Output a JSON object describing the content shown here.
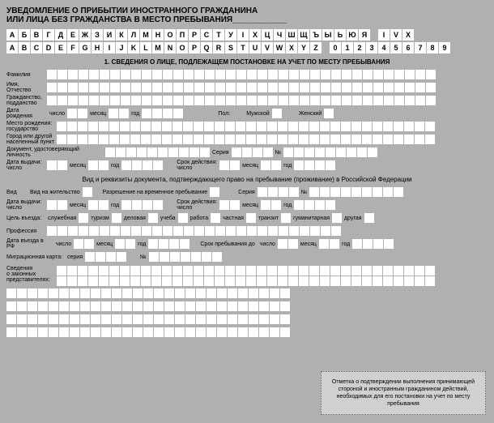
{
  "title_line1": "УВЕДОМЛЕНИЕ О ПРИБЫТИИ ИНОСТРАННОГО ГРАЖДАНИНА",
  "title_line2": "ИЛИ ЛИЦА БЕЗ ГРАЖДАНСТВА В МЕСТО ПРЕБЫВАНИЯ____________",
  "kb_ru": [
    "А",
    "Б",
    "В",
    "Г",
    "Д",
    "Е",
    "Ж",
    "З",
    "И",
    "К",
    "Л",
    "М",
    "Н",
    "О",
    "П",
    "Р",
    "С",
    "Т",
    "У",
    "І",
    "Х",
    "Ц",
    "Ч",
    "Ш",
    "Щ",
    "Ъ",
    "Ы",
    "Ь",
    "Ю",
    "Я"
  ],
  "kb_ru2": [
    "I",
    "V",
    "X"
  ],
  "kb_en": [
    "A",
    "B",
    "C",
    "D",
    "E",
    "F",
    "G",
    "H",
    "I",
    "J",
    "K",
    "L",
    "M",
    "N",
    "O",
    "P",
    "Q",
    "R",
    "S",
    "T",
    "U",
    "V",
    "W",
    "X",
    "Y",
    "Z"
  ],
  "kb_num": [
    "0",
    "1",
    "2",
    "3",
    "4",
    "5",
    "6",
    "7",
    "8",
    "9"
  ],
  "section1": "1. СВЕДЕНИЯ О ЛИЦЕ, ПОДЛЕЖАЩЕМ ПОСТАНОВКЕ НА УЧЕТ ПО МЕСТУ ПРЕБЫВАНИЯ",
  "lbl": {
    "fam": "Фамилия",
    "imo": "Имя,\nОтчество",
    "grag": "Гражданство,\nподданство",
    "dob": "Дата\nрождения",
    "chislo": "число",
    "mesyac": "месяц",
    "god": "год",
    "pol": "Пол:",
    "m": "Мужской",
    "f": "Женский",
    "mrog": "Место рождения:\nгосударство",
    "gorod": "Город или другой\nнаселенный пункт",
    "dokl": "Документ, удостоверяющий личность",
    "seriya": "Серия",
    "num": "№",
    "dvyd": "Дата выдачи:\nчисло",
    "srokD": "Срок действия:\nчисло",
    "vidrek": "Вид и реквизиты документа, подтверждающего право на пребывание (проживание) в Российской Федерации",
    "vid": "Вид",
    "vnz": "Вид на жительство",
    "rvp": "Разрешение на временное пребывание",
    "dvyd2": "Дата выдачи:\nчисло",
    "cel": "Цель въезда:",
    "sluz": "служебная",
    "tur": "туризм",
    "del": "деловая",
    "uch": "учеба",
    "rab": "работа",
    "chast": "частная",
    "tran": "транзит",
    "gum": "гуманитарная",
    "drug": "другая",
    "prof": "Профессия",
    "dvi": "Дата въезда в РФ",
    "srokPreb": "Срок пребывания до",
    "mig": "Миграционная карта:",
    "ser": "серия",
    "sved": "Сведения\nо законных\nпредставителях:"
  },
  "note": "Отметка о подтверждении выполнения принимающей стороной и иностранным гражданином действий, необходимых для его постановки на учет по месту пребывания"
}
